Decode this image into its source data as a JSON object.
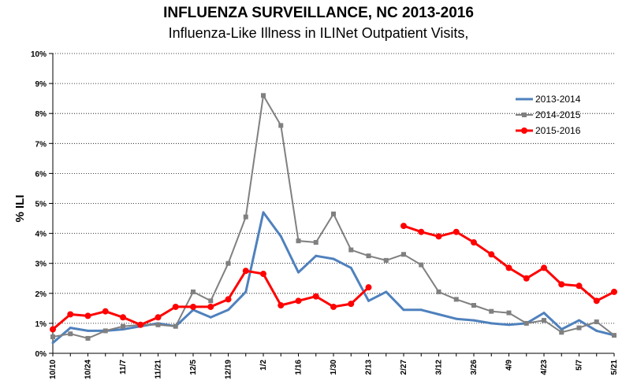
{
  "chart_data": {
    "type": "line",
    "title": "INFLUENZA SURVEILLANCE, NC 2013-2016",
    "subtitle": "Influenza-Like Illness in ILINet Outpatient Visits,",
    "ylabel": "% ILI",
    "xlabel": "",
    "ylim": [
      0,
      10
    ],
    "yticks": [
      "0%",
      "1%",
      "2%",
      "3%",
      "4%",
      "5%",
      "6%",
      "7%",
      "8%",
      "9%",
      "10%"
    ],
    "x_tick_labels": [
      "10/10",
      "10/24",
      "11/7",
      "11/21",
      "12/5",
      "12/19",
      "1/2",
      "1/16",
      "1/30",
      "2/13",
      "2/27",
      "3/12",
      "3/26",
      "4/9",
      "4/23",
      "5/7",
      "5/21"
    ],
    "grid": "horizontal",
    "legend_position": "top-right",
    "series": [
      {
        "name": "2013-2014",
        "color": "#4f81bd",
        "marker": "none",
        "values": [
          0.35,
          0.85,
          0.75,
          0.75,
          0.8,
          0.9,
          1.0,
          0.9,
          1.45,
          1.2,
          1.45,
          2.05,
          4.7,
          3.9,
          2.7,
          3.25,
          3.15,
          2.85,
          1.75,
          2.05,
          1.45,
          1.45,
          1.3,
          1.15,
          1.1,
          1.0,
          0.95,
          1.0,
          1.35,
          0.8,
          1.1,
          0.75,
          0.6
        ]
      },
      {
        "name": "2014-2015",
        "color": "#808080",
        "marker": "square",
        "values": [
          0.55,
          0.65,
          0.5,
          0.75,
          0.9,
          0.95,
          0.95,
          0.9,
          2.05,
          1.75,
          3.0,
          4.55,
          8.6,
          7.6,
          3.75,
          3.7,
          4.65,
          3.45,
          3.25,
          3.1,
          3.3,
          2.95,
          2.05,
          1.8,
          1.6,
          1.4,
          1.35,
          1.0,
          1.1,
          0.7,
          0.85,
          1.05,
          0.6
        ]
      },
      {
        "name": "2015-2016",
        "color": "#ff0000",
        "marker": "circle",
        "values": [
          0.8,
          1.3,
          1.25,
          1.4,
          1.2,
          0.95,
          1.2,
          1.55,
          1.55,
          1.55,
          1.8,
          2.75,
          2.65,
          1.6,
          1.75,
          1.9,
          1.55,
          1.65,
          2.2,
          null,
          4.25,
          4.05,
          3.9,
          4.05,
          3.7,
          3.3,
          2.85,
          2.5,
          2.85,
          2.3,
          2.25,
          1.75,
          2.05
        ]
      }
    ]
  }
}
